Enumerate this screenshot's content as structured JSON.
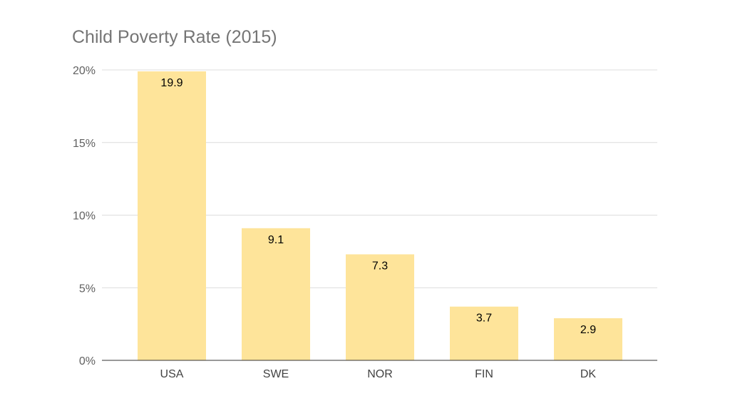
{
  "chart_data": {
    "type": "bar",
    "title": "Child Poverty Rate (2015)",
    "categories": [
      "USA",
      "SWE",
      "NOR",
      "FIN",
      "DK"
    ],
    "values": [
      19.9,
      9.1,
      7.3,
      3.7,
      2.9
    ],
    "data_labels": [
      "19.9",
      "9.1",
      "7.3",
      "3.7",
      "2.9"
    ],
    "yticks": [
      0,
      5,
      10,
      15,
      20
    ],
    "ytick_labels": [
      "0%",
      "5%",
      "10%",
      "15%",
      "20%"
    ],
    "ylim": [
      0,
      20
    ],
    "xlabel": "",
    "ylabel": "",
    "grid": true,
    "legend": "none"
  },
  "colors": {
    "bar": "#fee49a",
    "grid": "#dcdcdc",
    "axis": "#333333"
  }
}
